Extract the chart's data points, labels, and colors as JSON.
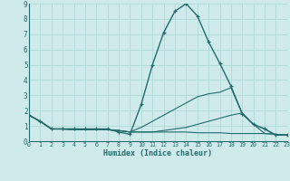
{
  "xlabel": "Humidex (Indice chaleur)",
  "bg_color": "#ceeaea",
  "grid_color": "#b0d8d8",
  "line_color": "#236b6b",
  "xlim": [
    0,
    23
  ],
  "ylim": [
    0,
    9
  ],
  "xticks": [
    0,
    1,
    2,
    3,
    4,
    5,
    6,
    7,
    8,
    9,
    10,
    11,
    12,
    13,
    14,
    15,
    16,
    17,
    18,
    19,
    20,
    21,
    22,
    23
  ],
  "yticks": [
    0,
    1,
    2,
    3,
    4,
    5,
    6,
    7,
    8,
    9
  ],
  "series": [
    {
      "x": [
        0,
        1,
        2,
        3,
        4,
        5,
        6,
        7,
        8,
        9,
        10,
        11,
        12,
        13,
        14,
        15,
        16,
        17,
        18,
        19,
        20,
        21,
        22,
        23
      ],
      "y": [
        1.7,
        1.3,
        0.8,
        0.8,
        0.8,
        0.8,
        0.8,
        0.8,
        0.6,
        0.45,
        2.4,
        5.0,
        7.1,
        8.5,
        9.0,
        8.2,
        6.5,
        5.1,
        3.6,
        1.8,
        1.1,
        0.8,
        0.4,
        0.4
      ],
      "marker": "+",
      "lw": 1.0
    },
    {
      "x": [
        0,
        1,
        2,
        3,
        4,
        5,
        6,
        7,
        8,
        9,
        10,
        11,
        12,
        13,
        14,
        15,
        16,
        17,
        18,
        19,
        20,
        21,
        22,
        23
      ],
      "y": [
        1.7,
        1.3,
        0.8,
        0.8,
        0.8,
        0.75,
        0.75,
        0.75,
        0.7,
        0.6,
        0.9,
        1.3,
        1.7,
        2.1,
        2.5,
        2.9,
        3.1,
        3.2,
        3.5,
        1.8,
        1.1,
        0.8,
        0.4,
        0.4
      ],
      "marker": null,
      "lw": 0.8
    },
    {
      "x": [
        0,
        1,
        2,
        3,
        4,
        5,
        6,
        7,
        8,
        9,
        10,
        11,
        12,
        13,
        14,
        15,
        16,
        17,
        18,
        19,
        20,
        21,
        22,
        23
      ],
      "y": [
        1.7,
        1.3,
        0.8,
        0.8,
        0.75,
        0.75,
        0.75,
        0.75,
        0.7,
        0.6,
        0.6,
        0.6,
        0.7,
        0.8,
        0.9,
        1.1,
        1.3,
        1.5,
        1.7,
        1.85,
        1.1,
        0.5,
        0.45,
        0.4
      ],
      "marker": null,
      "lw": 0.8
    },
    {
      "x": [
        0,
        1,
        2,
        3,
        4,
        5,
        6,
        7,
        8,
        9,
        10,
        11,
        12,
        13,
        14,
        15,
        16,
        17,
        18,
        19,
        20,
        21,
        22,
        23
      ],
      "y": [
        1.7,
        1.3,
        0.8,
        0.8,
        0.75,
        0.75,
        0.75,
        0.75,
        0.7,
        0.6,
        0.6,
        0.6,
        0.6,
        0.6,
        0.6,
        0.55,
        0.55,
        0.55,
        0.5,
        0.5,
        0.5,
        0.5,
        0.45,
        0.4
      ],
      "marker": null,
      "lw": 0.8
    }
  ]
}
